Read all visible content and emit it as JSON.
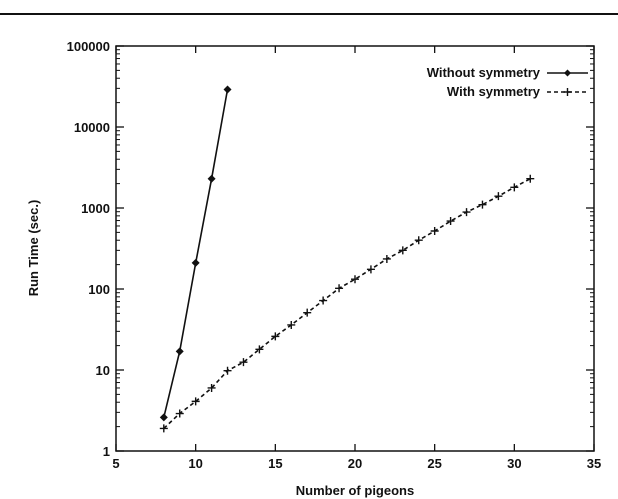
{
  "chart_data": {
    "type": "line",
    "title": "",
    "xlabel": "Number of pigeons",
    "ylabel": "Run Time (sec.)",
    "xlim": [
      5,
      35
    ],
    "ylim": [
      1,
      100000
    ],
    "yscale": "log",
    "grid": false,
    "legend_position": "top-right",
    "x_ticks": [
      5,
      10,
      15,
      20,
      25,
      30,
      35
    ],
    "x_tick_labels": [
      "5",
      "10",
      "15",
      "20",
      "25",
      "30",
      "35"
    ],
    "y_ticks": [
      1,
      10,
      100,
      1000,
      10000,
      100000
    ],
    "y_tick_labels": [
      "1",
      "10",
      "100",
      "1000",
      "10000",
      "100000"
    ],
    "series": [
      {
        "name": "Without symmetry",
        "marker": "diamond",
        "line_style": "solid",
        "color": "#111111",
        "x": [
          8,
          9,
          10,
          11,
          12
        ],
        "values": [
          2.6,
          17,
          210,
          2300,
          29000
        ]
      },
      {
        "name": "With symmetry",
        "marker": "plus",
        "line_style": "dashed",
        "color": "#111111",
        "x": [
          8,
          9,
          10,
          11,
          12,
          13,
          14,
          15,
          16,
          17,
          18,
          19,
          20,
          21,
          22,
          23,
          24,
          25,
          26,
          27,
          28,
          29,
          30,
          31
        ],
        "values": [
          1.9,
          2.9,
          4.1,
          6,
          9.8,
          12.5,
          18,
          26,
          36,
          51,
          72,
          102,
          132,
          175,
          235,
          300,
          400,
          520,
          690,
          890,
          1100,
          1400,
          1800,
          2300
        ]
      }
    ]
  }
}
